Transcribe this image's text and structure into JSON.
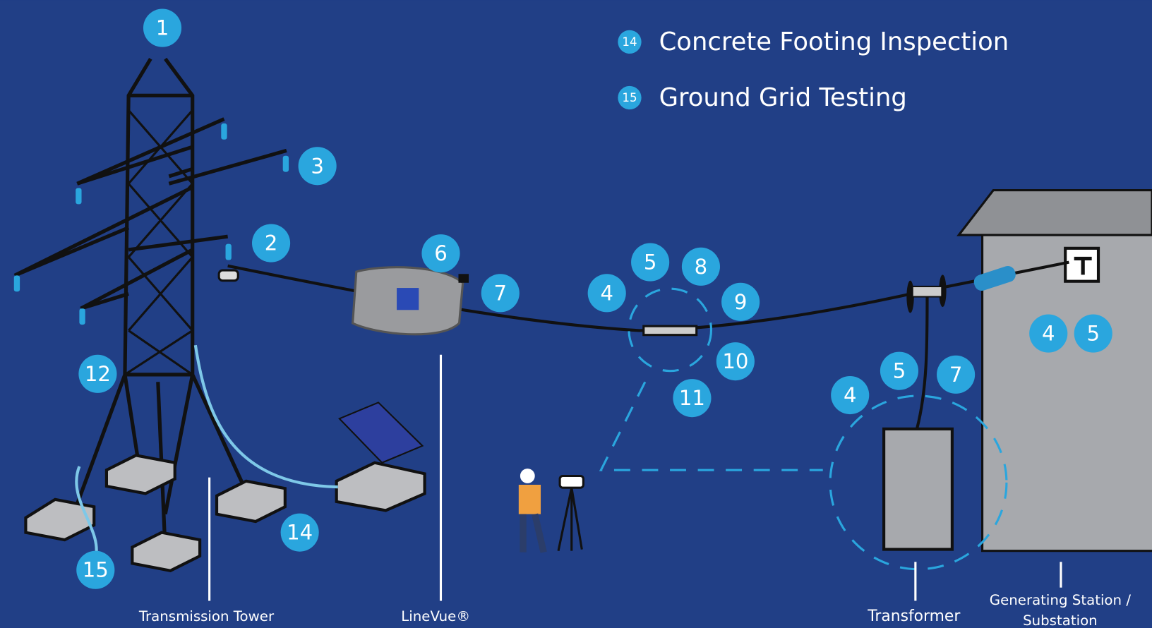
{
  "legend": [
    {
      "number": "14",
      "text": "Concrete Footing Inspection"
    },
    {
      "number": "15",
      "text": "Ground Grid Testing"
    }
  ],
  "badges": [
    "1",
    "3",
    "2",
    "6",
    "7",
    "4",
    "5",
    "8",
    "9",
    "10",
    "11",
    "12",
    "14",
    "15",
    "4",
    "5",
    "7",
    "4",
    "5"
  ],
  "labels": {
    "tower": "Transmission Tower",
    "linevue": "LineVue®",
    "transformer": "Transformer",
    "station": [
      "Generating Station /",
      "Substation"
    ]
  }
}
